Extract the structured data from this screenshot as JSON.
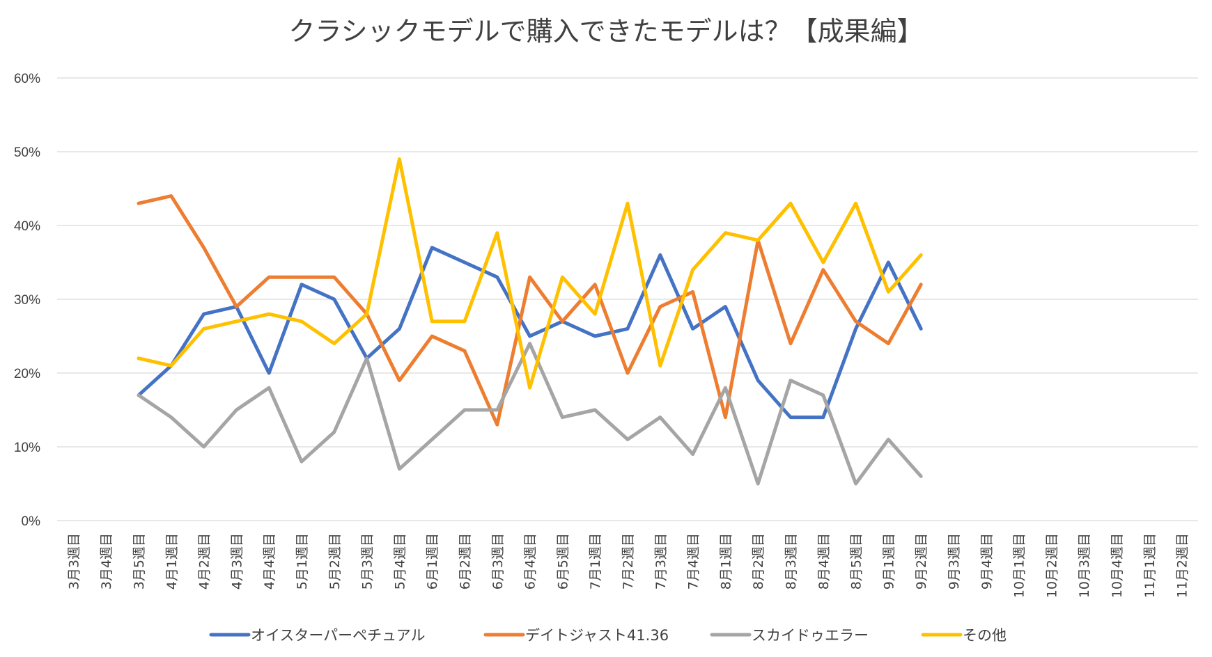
{
  "colors": {
    "series": [
      "#4472C4",
      "#ED7D31",
      "#A5A5A5",
      "#FFC000"
    ],
    "grid": "#d9d9d9",
    "text": "#404040"
  },
  "chart_data": {
    "type": "line",
    "title": "クラシックモデルで購入できたモデルは？【成果編】",
    "xlabel": "",
    "ylabel": "",
    "ylim": [
      0,
      0.6
    ],
    "yticks": [
      0,
      0.1,
      0.2,
      0.3,
      0.4,
      0.5,
      0.6
    ],
    "ytick_labels": [
      "0%",
      "10%",
      "20%",
      "30%",
      "40%",
      "50%",
      "60%"
    ],
    "grid": true,
    "legend_position": "bottom",
    "categories": [
      "3月3週目",
      "3月4週目",
      "3月5週目",
      "4月1週目",
      "4月2週目",
      "4月3週目",
      "4月4週目",
      "5月1週目",
      "5月2週目",
      "5月3週目",
      "5月4週目",
      "6月1週目",
      "6月2週目",
      "6月3週目",
      "6月4週目",
      "6月5週目",
      "7月1週目",
      "7月2週目",
      "7月3週目",
      "7月4週目",
      "8月1週目",
      "8月2週目",
      "8月3週目",
      "8月4週目",
      "8月5週目",
      "9月1週目",
      "9月2週目",
      "9月3週目",
      "9月4週目",
      "10月1週目",
      "10月2週目",
      "10月3週目",
      "10月4週目",
      "11月1週目",
      "11月2週目"
    ],
    "series": [
      {
        "name": "オイスターパーペチュアル",
        "values": [
          null,
          null,
          0.17,
          0.21,
          0.28,
          0.29,
          0.2,
          0.32,
          0.3,
          0.22,
          0.26,
          0.37,
          0.35,
          0.33,
          0.25,
          0.27,
          0.25,
          0.26,
          0.36,
          0.26,
          0.29,
          0.19,
          0.14,
          0.14,
          0.26,
          0.35,
          0.26,
          null,
          null,
          null,
          null,
          null,
          null,
          null,
          null
        ]
      },
      {
        "name": "デイトジャスト41.36",
        "values": [
          null,
          null,
          0.43,
          0.44,
          0.37,
          0.29,
          0.33,
          0.33,
          0.33,
          0.28,
          0.19,
          0.25,
          0.23,
          0.13,
          0.33,
          0.27,
          0.32,
          0.2,
          0.29,
          0.31,
          0.14,
          0.38,
          0.24,
          0.34,
          0.27,
          0.24,
          0.32,
          null,
          null,
          null,
          null,
          null,
          null,
          null,
          null
        ]
      },
      {
        "name": "スカイドゥエラー",
        "values": [
          null,
          null,
          0.17,
          0.14,
          0.1,
          0.15,
          0.18,
          0.08,
          0.12,
          0.22,
          0.07,
          0.11,
          0.15,
          0.15,
          0.24,
          0.14,
          0.15,
          0.11,
          0.14,
          0.09,
          0.18,
          0.05,
          0.19,
          0.17,
          0.05,
          0.11,
          0.06,
          null,
          null,
          null,
          null,
          null,
          null,
          null,
          null
        ]
      },
      {
        "name": "その他",
        "values": [
          null,
          null,
          0.22,
          0.21,
          0.26,
          0.27,
          0.28,
          0.27,
          0.24,
          0.28,
          0.49,
          0.27,
          0.27,
          0.39,
          0.18,
          0.33,
          0.28,
          0.43,
          0.21,
          0.34,
          0.39,
          0.38,
          0.43,
          0.35,
          0.43,
          0.31,
          0.36,
          null,
          null,
          null,
          null,
          null,
          null,
          null,
          null
        ]
      }
    ]
  }
}
